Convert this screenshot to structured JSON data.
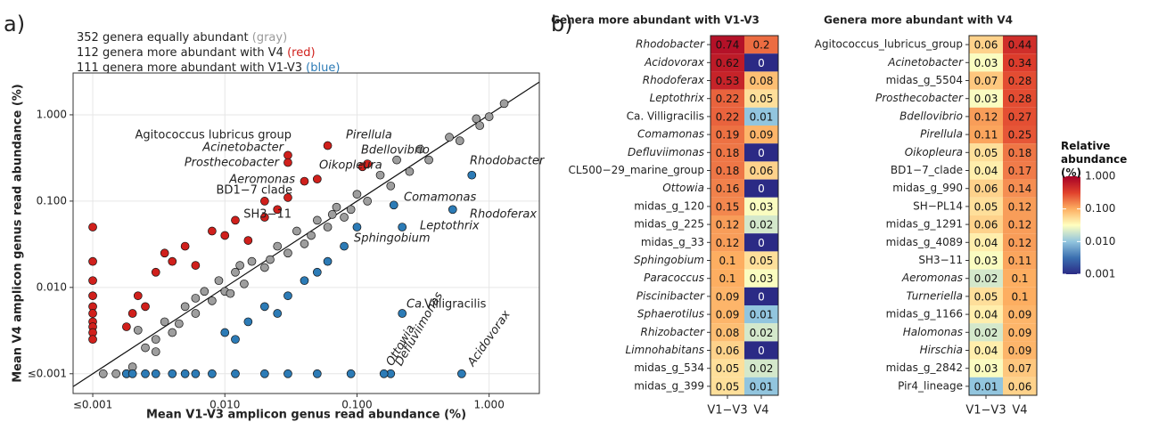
{
  "chart_data": [
    {
      "type": "scatter",
      "panel_label": "a)",
      "annotations": [
        {
          "text": "352 genera equally abundant ",
          "key": "(gray)",
          "color": "#9a9a9a"
        },
        {
          "text": "112 genera more abundant with V4 ",
          "key": "(red)",
          "color": "#d0201c"
        },
        {
          "text": "111 genera more abundant with V1-V3 ",
          "key": "(blue)",
          "color": "#2c7bb6"
        }
      ],
      "xlabel": "Mean V1-V3 amplicon genus read abundance (%)",
      "ylabel": "Mean V4 amplicon genus read abundance (%)",
      "log_scale": true,
      "grid": true,
      "xlim": [
        0.00071,
        2.4
      ],
      "ylim": [
        0.00059,
        3.05
      ],
      "xticks": [
        {
          "value": 0.001,
          "label": "≤0.001"
        },
        {
          "value": 0.01,
          "label": "0.010"
        },
        {
          "value": 0.1,
          "label": "0.100"
        },
        {
          "value": 1,
          "label": "1.000"
        }
      ],
      "yticks": [
        {
          "value": 0.001,
          "label": "≤0.001"
        },
        {
          "value": 0.01,
          "label": "0.010"
        },
        {
          "value": 0.1,
          "label": "0.100"
        },
        {
          "value": 1,
          "label": "1.000"
        }
      ],
      "series": [
        {
          "color": "#9e9e9e",
          "x": [
            0.0012,
            0.0015,
            0.0018,
            0.002,
            0.0025,
            0.003,
            0.0035,
            0.004,
            0.005,
            0.006,
            0.007,
            0.008,
            0.009,
            0.01,
            0.012,
            0.014,
            0.016,
            0.02,
            0.025,
            0.03,
            0.035,
            0.04,
            0.05,
            0.06,
            0.07,
            0.08,
            0.1,
            0.12,
            0.15,
            0.18,
            0.2,
            0.25,
            0.3,
            0.35,
            0.5,
            0.6,
            0.8,
            0.85,
            1.0,
            1.3,
            0.0022,
            0.003,
            0.0045,
            0.006,
            0.011,
            0.013,
            0.022,
            0.045,
            0.065,
            0.09
          ],
          "y": [
            0.001,
            0.001,
            0.001,
            0.0012,
            0.002,
            0.0025,
            0.004,
            0.003,
            0.006,
            0.005,
            0.009,
            0.007,
            0.012,
            0.009,
            0.015,
            0.011,
            0.02,
            0.017,
            0.03,
            0.025,
            0.045,
            0.032,
            0.06,
            0.05,
            0.085,
            0.065,
            0.12,
            0.1,
            0.2,
            0.15,
            0.3,
            0.22,
            0.4,
            0.3,
            0.55,
            0.5,
            0.9,
            0.75,
            0.95,
            1.35,
            0.0032,
            0.0018,
            0.0038,
            0.0075,
            0.0085,
            0.018,
            0.021,
            0.04,
            0.07,
            0.08
          ]
        },
        {
          "color": "#d0201c",
          "x": [
            0.001,
            0.001,
            0.001,
            0.001,
            0.001,
            0.001,
            0.001,
            0.001,
            0.001,
            0.001,
            0.0022,
            0.003,
            0.0035,
            0.004,
            0.005,
            0.006,
            0.008,
            0.01,
            0.012,
            0.015,
            0.02,
            0.025,
            0.002,
            0.0025,
            0.0018,
            0.06,
            0.03,
            0.03,
            0.11,
            0.12,
            0.05,
            0.02,
            0.04,
            0.03
          ],
          "y": [
            0.05,
            0.02,
            0.012,
            0.008,
            0.006,
            0.005,
            0.004,
            0.0035,
            0.003,
            0.0025,
            0.008,
            0.015,
            0.025,
            0.02,
            0.03,
            0.018,
            0.045,
            0.04,
            0.06,
            0.035,
            0.065,
            0.08,
            0.005,
            0.006,
            0.0035,
            0.44,
            0.34,
            0.28,
            0.25,
            0.27,
            0.18,
            0.1,
            0.17,
            0.11
          ]
        },
        {
          "color": "#2c7bb6",
          "x": [
            0.0018,
            0.002,
            0.0025,
            0.003,
            0.004,
            0.005,
            0.006,
            0.008,
            0.012,
            0.02,
            0.03,
            0.05,
            0.09,
            0.01,
            0.015,
            0.02,
            0.03,
            0.04,
            0.05,
            0.06,
            0.08,
            0.012,
            0.025,
            0.74,
            0.62,
            0.53,
            0.22,
            0.22,
            0.19,
            0.18,
            0.16,
            0.1
          ],
          "y": [
            0.001,
            0.001,
            0.001,
            0.001,
            0.001,
            0.001,
            0.001,
            0.001,
            0.001,
            0.001,
            0.001,
            0.001,
            0.001,
            0.003,
            0.004,
            0.006,
            0.008,
            0.012,
            0.015,
            0.02,
            0.03,
            0.0025,
            0.005,
            0.2,
            0.001,
            0.08,
            0.05,
            0.005,
            0.09,
            0.001,
            0.001,
            0.05
          ]
        }
      ],
      "point_labels": [
        {
          "text": "Agitococcus lubricus group",
          "italic": false
        },
        {
          "text": "Acinetobacter",
          "italic": true
        },
        {
          "text": "Prosthecobacter",
          "italic": true
        },
        {
          "text": "Pirellula",
          "italic": true
        },
        {
          "text": "Bdellovibrio",
          "italic": true
        },
        {
          "text": "Oikopleura",
          "italic": true
        },
        {
          "text": "Aeromonas",
          "italic": true
        },
        {
          "text": "BD1−7 clade",
          "italic": false
        },
        {
          "text": "SH3−11",
          "italic": false
        },
        {
          "text": "Rhodobacter",
          "italic": true
        },
        {
          "text": "Comamonas",
          "italic": true
        },
        {
          "text": "Rhodoferax",
          "italic": true
        },
        {
          "text": "Leptothrix",
          "italic": true
        },
        {
          "text": "Sphingobium",
          "italic": true
        },
        {
          "text": "Ca.",
          "italic": true
        },
        {
          "text": "Villigracilis",
          "italic": false
        },
        {
          "text": "Ottowia",
          "italic": true
        },
        {
          "text": "Defluviimonas",
          "italic": true
        },
        {
          "text": "Acidovorax",
          "italic": true
        }
      ]
    },
    {
      "type": "heatmap",
      "panel_label": "b)",
      "title": "Genera more abundant with V1-V3",
      "categories": [
        "Rhodobacter",
        "Acidovorax",
        "Rhodoferax",
        "Leptothrix",
        "Ca. Villigracilis",
        "Comamonas",
        "Defluviimonas",
        "CL500−29_marine_group",
        "Ottowia",
        "midas_g_120",
        "midas_g_225",
        "midas_g_33",
        "Sphingobium",
        "Paracoccus",
        "Piscinibacter",
        "Sphaerotilus",
        "Rhizobacter",
        "Limnohabitans",
        "midas_g_534",
        "midas_g_399"
      ],
      "italic": [
        true,
        true,
        true,
        true,
        false,
        true,
        true,
        false,
        true,
        false,
        false,
        false,
        true,
        true,
        true,
        true,
        true,
        true,
        false,
        false
      ],
      "series": [
        {
          "name": "V1−V3",
          "values": [
            0.74,
            0.62,
            0.53,
            0.22,
            0.22,
            0.19,
            0.18,
            0.18,
            0.16,
            0.15,
            0.12,
            0.12,
            0.1,
            0.1,
            0.09,
            0.09,
            0.08,
            0.06,
            0.05,
            0.05
          ]
        },
        {
          "name": "V4",
          "values": [
            0.2,
            0,
            0.08,
            0.05,
            0.01,
            0.09,
            0,
            0.06,
            0,
            0.03,
            0.02,
            0,
            0.05,
            0.03,
            0,
            0.01,
            0.02,
            0,
            0.02,
            0.01
          ]
        }
      ]
    },
    {
      "type": "heatmap",
      "title": "Genera more abundant with V4",
      "categories": [
        "Agitococcus_lubricus_group",
        "Acinetobacter",
        "midas_g_5504",
        "Prosthecobacter",
        "Bdellovibrio",
        "Pirellula",
        "Oikopleura",
        "BD1−7_clade",
        "midas_g_990",
        "SH−PL14",
        "midas_g_1291",
        "midas_g_4089",
        "SH3−11",
        "Aeromonas",
        "Turneriella",
        "midas_g_1166",
        "Halomonas",
        "Hirschia",
        "midas_g_2842",
        "Pir4_lineage"
      ],
      "italic": [
        false,
        true,
        false,
        true,
        true,
        true,
        true,
        false,
        false,
        false,
        false,
        false,
        false,
        true,
        true,
        false,
        true,
        true,
        false,
        false
      ],
      "series": [
        {
          "name": "V1−V3",
          "values": [
            0.06,
            0.03,
            0.07,
            0.03,
            0.12,
            0.11,
            0.05,
            0.04,
            0.06,
            0.05,
            0.06,
            0.04,
            0.03,
            0.02,
            0.05,
            0.04,
            0.02,
            0.04,
            0.03,
            0.01
          ]
        },
        {
          "name": "V4",
          "values": [
            0.44,
            0.34,
            0.28,
            0.28,
            0.27,
            0.25,
            0.18,
            0.17,
            0.14,
            0.12,
            0.12,
            0.12,
            0.11,
            0.1,
            0.1,
            0.09,
            0.09,
            0.09,
            0.07,
            0.06
          ]
        }
      ]
    },
    {
      "type": "colorbar",
      "title": "Relative abundance (%)",
      "log_scale": true,
      "lim": [
        0.001,
        1
      ],
      "colors": [
        "#2b2a85",
        "#3b6fb0",
        "#92c5de",
        "#ffffbf",
        "#fdae61",
        "#e0402c",
        "#a50026"
      ],
      "ticks": [
        {
          "value": 1,
          "label": "1.000"
        },
        {
          "value": 0.1,
          "label": "0.100"
        },
        {
          "value": 0.01,
          "label": "0.010"
        },
        {
          "value": 0.001,
          "label": "0.001"
        }
      ]
    }
  ]
}
